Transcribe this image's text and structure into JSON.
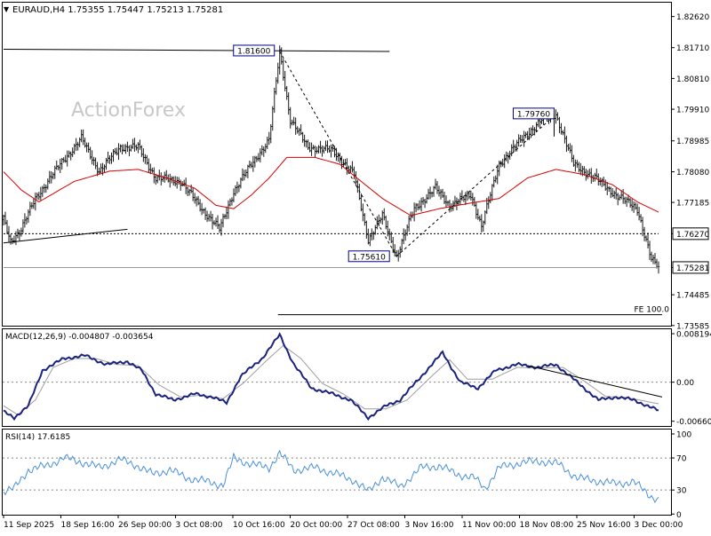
{
  "header": {
    "symbol_line": "EURAUD,H4  1.75355 1.75447 1.75213 1.75281"
  },
  "watermark": "ActionForex",
  "colors": {
    "bars": "#1a1a1a",
    "sma": "#d40000",
    "macd_main": "#1a237e",
    "macd_signal": "#9e9e9e",
    "rsi": "#4a90d9",
    "label_border": "#00008b",
    "grid": "#888888"
  },
  "chart_data": [
    {
      "type": "line",
      "name": "price",
      "ylim": [
        1.7358,
        1.83
      ],
      "y_ticks": [
        "1.82620",
        "1.81710",
        "1.80810",
        "1.79910",
        "1.78985",
        "1.78080",
        "1.77185",
        "1.76270",
        "1.75281",
        "1.74485",
        "1.73585"
      ],
      "y_tick_values": [
        1.8262,
        1.8171,
        1.8081,
        1.7991,
        1.78985,
        1.7808,
        1.77185,
        1.7627,
        1.75281,
        1.74485,
        1.73585
      ],
      "x_labels": [
        "11 Sep 2025",
        "18 Sep 16:00",
        "26 Sep 00:00",
        "3 Oct 08:00",
        "10 Oct 16:00",
        "20 Oct 00:00",
        "27 Oct 08:00",
        "3 Nov 16:00",
        "11 Nov 00:00",
        "18 Nov 08:00",
        "25 Nov 16:00",
        "3 Dec 00:00"
      ],
      "close_anchors": [
        [
          0,
          1.7668
        ],
        [
          4,
          1.7605
        ],
        [
          10,
          1.764
        ],
        [
          18,
          1.773
        ],
        [
          32,
          1.783
        ],
        [
          44,
          1.7905
        ],
        [
          54,
          1.781
        ],
        [
          66,
          1.788
        ],
        [
          76,
          1.788
        ],
        [
          86,
          1.779
        ],
        [
          100,
          1.778
        ],
        [
          112,
          1.77
        ],
        [
          122,
          1.764
        ],
        [
          130,
          1.775
        ],
        [
          140,
          1.783
        ],
        [
          150,
          1.79
        ],
        [
          156,
          1.816
        ],
        [
          162,
          1.796
        ],
        [
          172,
          1.788
        ],
        [
          186,
          1.787
        ],
        [
          198,
          1.78
        ],
        [
          206,
          1.761
        ],
        [
          214,
          1.768
        ],
        [
          222,
          1.7561
        ],
        [
          232,
          1.77
        ],
        [
          244,
          1.776
        ],
        [
          252,
          1.771
        ],
        [
          264,
          1.774
        ],
        [
          270,
          1.765
        ],
        [
          280,
          1.783
        ],
        [
          292,
          1.79
        ],
        [
          304,
          1.796
        ],
        [
          312,
          1.7976
        ],
        [
          322,
          1.783
        ],
        [
          334,
          1.779
        ],
        [
          346,
          1.774
        ],
        [
          358,
          1.77
        ],
        [
          366,
          1.755
        ],
        [
          370,
          1.75281
        ]
      ],
      "sma_anchors": [
        [
          0,
          1.7808
        ],
        [
          10,
          1.7755
        ],
        [
          20,
          1.772
        ],
        [
          40,
          1.778
        ],
        [
          60,
          1.781
        ],
        [
          76,
          1.7815
        ],
        [
          92,
          1.779
        ],
        [
          108,
          1.776
        ],
        [
          120,
          1.771
        ],
        [
          130,
          1.77
        ],
        [
          140,
          1.774
        ],
        [
          150,
          1.779
        ],
        [
          160,
          1.785
        ],
        [
          176,
          1.785
        ],
        [
          190,
          1.783
        ],
        [
          202,
          1.778
        ],
        [
          214,
          1.773
        ],
        [
          230,
          1.768
        ],
        [
          246,
          1.77
        ],
        [
          262,
          1.7715
        ],
        [
          280,
          1.773
        ],
        [
          296,
          1.779
        ],
        [
          312,
          1.7815
        ],
        [
          328,
          1.78
        ],
        [
          344,
          1.777
        ],
        [
          358,
          1.772
        ],
        [
          370,
          1.769
        ]
      ],
      "trendlines": [
        {
          "from": [
            0,
            1.76
          ],
          "to": [
            70,
            1.764
          ],
          "style": "solid"
        },
        {
          "from": [
            0,
            1.81665
          ],
          "to": [
            218,
            1.816
          ],
          "style": "solid"
        },
        {
          "from": [
            156,
            1.816
          ],
          "to": [
            222,
            1.7561
          ],
          "style": "dashed"
        },
        {
          "from": [
            222,
            1.7561
          ],
          "to": [
            312,
            1.7976
          ],
          "style": "dashed"
        },
        {
          "from": [
            0,
            1.7627
          ],
          "to": [
            370,
            1.7627
          ],
          "style": "dotted"
        },
        {
          "from": [
            0,
            1.75281
          ],
          "to": [
            370,
            1.75281
          ],
          "style": "thin"
        },
        {
          "from": [
            155,
            1.739
          ],
          "to": [
            372,
            1.739
          ],
          "style": "solid"
        }
      ],
      "annotations": [
        {
          "text": "1.81600",
          "x": 156,
          "y": 1.816
        },
        {
          "text": "1.79760",
          "x": 312,
          "y": 1.7976
        },
        {
          "text": "1.75610",
          "x": 222,
          "y": 1.7561
        },
        {
          "text": "FE 100.0",
          "x": 372,
          "y": 1.739
        }
      ],
      "highlight_tags": [
        {
          "text": "1.76270",
          "y": 1.7627
        },
        {
          "text": "1.75281",
          "y": 1.75281
        }
      ]
    },
    {
      "type": "line",
      "name": "macd",
      "title": "MACD(12,26,9) -0.004807 -0.003654",
      "ylim": [
        -0.0074,
        0.0088
      ],
      "y_ticks": [
        "0.008194",
        "0.00",
        "-0.006604"
      ],
      "y_tick_values": [
        0.008194,
        0.0,
        -0.006604
      ],
      "main_anchors": [
        [
          0,
          -0.005
        ],
        [
          6,
          -0.006
        ],
        [
          14,
          -0.004
        ],
        [
          22,
          0.002
        ],
        [
          34,
          0.004
        ],
        [
          46,
          0.0045
        ],
        [
          58,
          0.003
        ],
        [
          70,
          0.0035
        ],
        [
          78,
          0.002
        ],
        [
          86,
          -0.002
        ],
        [
          96,
          -0.003
        ],
        [
          108,
          -0.002
        ],
        [
          118,
          -0.0025
        ],
        [
          126,
          -0.0035
        ],
        [
          134,
          0.001
        ],
        [
          146,
          0.004
        ],
        [
          156,
          0.008
        ],
        [
          164,
          0.003
        ],
        [
          174,
          -0.001
        ],
        [
          186,
          -0.002
        ],
        [
          196,
          -0.003
        ],
        [
          206,
          -0.006
        ],
        [
          216,
          -0.004
        ],
        [
          224,
          -0.003
        ],
        [
          236,
          0.001
        ],
        [
          248,
          0.005
        ],
        [
          258,
          0.0
        ],
        [
          268,
          -0.001
        ],
        [
          278,
          0.002
        ],
        [
          290,
          0.003
        ],
        [
          302,
          0.0025
        ],
        [
          312,
          0.003
        ],
        [
          324,
          0.0
        ],
        [
          336,
          -0.003
        ],
        [
          346,
          -0.0025
        ],
        [
          356,
          -0.003
        ],
        [
          370,
          -0.0048
        ]
      ],
      "signal_anchors": [
        [
          0,
          -0.004
        ],
        [
          8,
          -0.0055
        ],
        [
          18,
          -0.003
        ],
        [
          28,
          0.0025
        ],
        [
          40,
          0.004
        ],
        [
          52,
          0.004
        ],
        [
          64,
          0.003
        ],
        [
          76,
          0.0028
        ],
        [
          88,
          -0.0005
        ],
        [
          100,
          -0.0025
        ],
        [
          112,
          -0.0022
        ],
        [
          124,
          -0.0028
        ],
        [
          136,
          0.0
        ],
        [
          148,
          0.0035
        ],
        [
          158,
          0.0062
        ],
        [
          168,
          0.004
        ],
        [
          180,
          -0.0002
        ],
        [
          192,
          -0.002
        ],
        [
          204,
          -0.0045
        ],
        [
          216,
          -0.0045
        ],
        [
          228,
          -0.003
        ],
        [
          240,
          0.0005
        ],
        [
          252,
          0.0038
        ],
        [
          262,
          0.0005
        ],
        [
          276,
          0.0005
        ],
        [
          290,
          0.0025
        ],
        [
          304,
          0.0024
        ],
        [
          316,
          0.0025
        ],
        [
          328,
          0.0002
        ],
        [
          340,
          -0.0024
        ],
        [
          352,
          -0.0026
        ],
        [
          370,
          -0.003654
        ]
      ],
      "trendline": {
        "from": [
          296,
          0.0028
        ],
        "to": [
          372,
          -0.0025
        ]
      }
    },
    {
      "type": "line",
      "name": "rsi",
      "title": "RSI(14) 17.6185",
      "ylim": [
        0,
        100
      ],
      "y_ticks": [
        "100",
        "70",
        "30",
        "0"
      ],
      "y_tick_values": [
        100,
        70,
        30,
        0
      ],
      "level_lines": [
        70,
        30
      ],
      "anchors": [
        [
          0,
          28
        ],
        [
          6,
          32
        ],
        [
          14,
          55
        ],
        [
          24,
          60
        ],
        [
          34,
          70
        ],
        [
          44,
          65
        ],
        [
          54,
          58
        ],
        [
          66,
          68
        ],
        [
          74,
          62
        ],
        [
          84,
          50
        ],
        [
          94,
          55
        ],
        [
          104,
          45
        ],
        [
          116,
          40
        ],
        [
          124,
          36
        ],
        [
          130,
          70
        ],
        [
          140,
          62
        ],
        [
          150,
          58
        ],
        [
          156,
          76
        ],
        [
          164,
          55
        ],
        [
          176,
          58
        ],
        [
          188,
          50
        ],
        [
          198,
          42
        ],
        [
          206,
          28
        ],
        [
          214,
          46
        ],
        [
          224,
          34
        ],
        [
          236,
          58
        ],
        [
          246,
          60
        ],
        [
          256,
          50
        ],
        [
          266,
          45
        ],
        [
          272,
          32
        ],
        [
          280,
          58
        ],
        [
          292,
          64
        ],
        [
          304,
          66
        ],
        [
          314,
          62
        ],
        [
          324,
          45
        ],
        [
          334,
          42
        ],
        [
          344,
          38
        ],
        [
          356,
          40
        ],
        [
          366,
          22
        ],
        [
          370,
          17.6185
        ]
      ]
    }
  ]
}
